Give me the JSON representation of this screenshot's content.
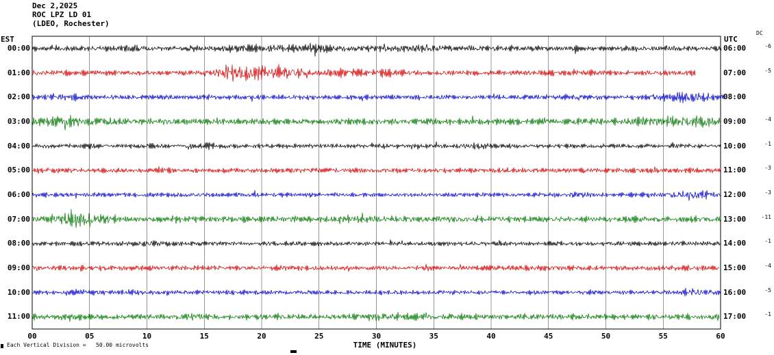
{
  "header": {
    "line1": "Dec 2,2025",
    "line2": "ROC LPZ LD 01",
    "line3": "(LDEO, Rochester)"
  },
  "axis": {
    "left_tz": "EST",
    "right_tz": "UTC",
    "dc_header": "DC",
    "x_label": "TIME (MINUTES)"
  },
  "footer": {
    "scale_note": "Each Vertical Division =   50.00 microvolts"
  },
  "chart_data": {
    "type": "line",
    "title": "ROC LPZ LD 01 helicorder record, Dec 2,2025 (LDEO, Rochester)",
    "x_label": "TIME (MINUTES)",
    "x_range": [
      0,
      60
    ],
    "x_ticks": [
      "00",
      "05",
      "10",
      "15",
      "20",
      "25",
      "30",
      "35",
      "40",
      "45",
      "50",
      "55",
      "60"
    ],
    "grid": true,
    "microvolts_per_division": 50.0,
    "trace_colors_cycle": [
      "#000000",
      "#d40000",
      "#0000cc",
      "#007700"
    ],
    "rows": [
      {
        "est": "00:00",
        "utc": "06:00",
        "dc": "-6",
        "color": "#000000",
        "amp": 3.0,
        "end": 60.1,
        "events": [
          {
            "m": 22,
            "w": 4,
            "g": 1.6
          },
          {
            "m": 33,
            "w": 2,
            "g": 1.6
          },
          {
            "m": 8,
            "w": 1,
            "g": 1.3
          }
        ]
      },
      {
        "est": "01:00",
        "utc": "07:00",
        "dc": "-5",
        "color": "#d40000",
        "amp": 3.0,
        "end": 57.8,
        "events": [
          {
            "m": 17.5,
            "w": 1.2,
            "g": 3.2
          },
          {
            "m": 20,
            "w": 1.5,
            "g": 2.6
          },
          {
            "m": 23,
            "w": 1,
            "g": 2.0
          },
          {
            "m": 27,
            "w": 1,
            "g": 1.6
          },
          {
            "m": 31,
            "w": 1,
            "g": 1.5
          }
        ]
      },
      {
        "est": "02:00",
        "utc": "08:00",
        "dc": "",
        "color": "#0000cc",
        "amp": 2.8,
        "end": 60.3,
        "events": [
          {
            "m": 2.5,
            "w": 1,
            "g": 1.6
          },
          {
            "m": 57,
            "w": 1.5,
            "g": 2.2
          }
        ]
      },
      {
        "est": "03:00",
        "utc": "09:00",
        "dc": "-4",
        "color": "#007700",
        "amp": 3.6,
        "end": 60.0,
        "events": [
          {
            "m": 3,
            "w": 1.5,
            "g": 1.8
          },
          {
            "m": 7,
            "w": 1,
            "g": 1.5
          },
          {
            "m": 53,
            "w": 0.8,
            "g": 1.6
          },
          {
            "m": 56,
            "w": 1,
            "g": 1.8
          },
          {
            "m": 58.5,
            "w": 1,
            "g": 2.0
          }
        ]
      },
      {
        "est": "04:00",
        "utc": "10:00",
        "dc": "-1",
        "color": "#000000",
        "amp": 2.6,
        "end": 60.0,
        "events": [
          {
            "m": 15,
            "w": 1,
            "g": 1.5
          },
          {
            "m": 39,
            "w": 1,
            "g": 1.4
          }
        ]
      },
      {
        "est": "05:00",
        "utc": "11:00",
        "dc": "-3",
        "color": "#d40000",
        "amp": 2.8,
        "end": 60.0,
        "events": [
          {
            "m": 23,
            "w": 1,
            "g": 1.3
          }
        ]
      },
      {
        "est": "06:00",
        "utc": "12:00",
        "dc": "-3",
        "color": "#0000cc",
        "amp": 2.5,
        "end": 60.1,
        "events": [
          {
            "m": 48,
            "w": 1,
            "g": 1.4
          },
          {
            "m": 57.5,
            "w": 1.5,
            "g": 2.0
          }
        ]
      },
      {
        "est": "07:00",
        "utc": "13:00",
        "dc": "-11",
        "color": "#007700",
        "amp": 3.4,
        "end": 60.0,
        "events": [
          {
            "m": 3.5,
            "w": 1.2,
            "g": 2.8
          },
          {
            "m": 5.5,
            "w": 1,
            "g": 2.0
          },
          {
            "m": 30,
            "w": 3,
            "g": 1.3
          }
        ]
      },
      {
        "est": "08:00",
        "utc": "14:00",
        "dc": "-1",
        "color": "#000000",
        "amp": 2.6,
        "end": 60.0,
        "events": [
          {
            "m": 10,
            "w": 1,
            "g": 1.4
          }
        ]
      },
      {
        "est": "09:00",
        "utc": "15:00",
        "dc": "-4",
        "color": "#d40000",
        "amp": 2.9,
        "end": 59.9,
        "events": [
          {
            "m": 44,
            "w": 1,
            "g": 1.3
          }
        ]
      },
      {
        "est": "10:00",
        "utc": "16:00",
        "dc": "-5",
        "color": "#0000cc",
        "amp": 2.5,
        "end": 60.0,
        "events": [
          {
            "m": 4,
            "w": 1,
            "g": 1.4
          },
          {
            "m": 58,
            "w": 1,
            "g": 1.8
          }
        ]
      },
      {
        "est": "11:00",
        "utc": "17:00",
        "dc": "-1",
        "color": "#007700",
        "amp": 3.2,
        "end": 59.9,
        "events": [
          {
            "m": 14,
            "w": 1,
            "g": 1.5
          },
          {
            "m": 30,
            "w": 2,
            "g": 1.4
          }
        ]
      }
    ]
  }
}
